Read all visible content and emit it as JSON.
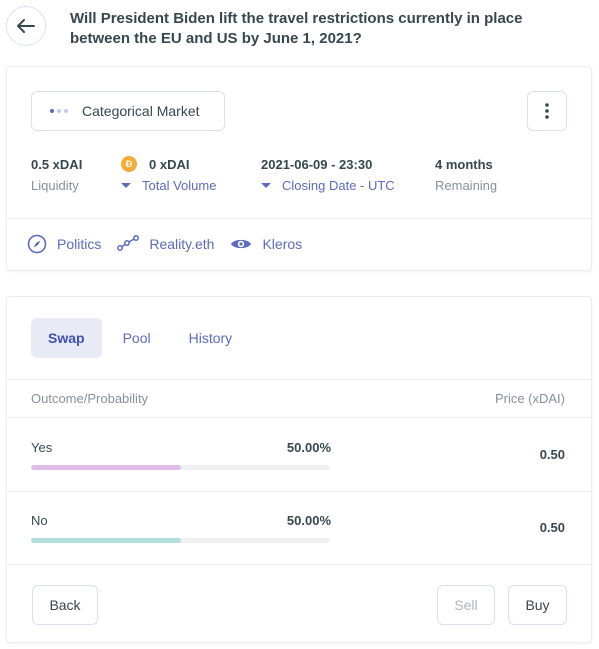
{
  "header": {
    "title": "Will President Biden lift the travel restrictions currently in place between the EU and US by June 1, 2021?"
  },
  "market": {
    "type_label": "Categorical Market",
    "stats": {
      "liquidity_value": "0.5 xDAI",
      "liquidity_label": "Liquidity",
      "volume_value": "0 xDAI",
      "volume_label": "Total Volume",
      "closing_value": "2021-06-09 - 23:30",
      "closing_label": "Closing Date - UTC",
      "remaining_value": "4 months",
      "remaining_label": "Remaining"
    },
    "tags": [
      {
        "label": "Politics",
        "icon": "compass-icon"
      },
      {
        "label": "Reality.eth",
        "icon": "nodes-icon"
      },
      {
        "label": "Kleros",
        "icon": "eye-icon"
      }
    ]
  },
  "trade": {
    "tabs": [
      "Swap",
      "Pool",
      "History"
    ],
    "active_tab": "Swap",
    "columns": {
      "outcome": "Outcome/Probability",
      "price": "Price (xDAI)"
    },
    "outcomes": [
      {
        "name": "Yes",
        "probability": "50.00%",
        "probability_fraction": 0.5,
        "price": "0.50",
        "color": "#e1bee7"
      },
      {
        "name": "No",
        "probability": "50.00%",
        "probability_fraction": 0.5,
        "price": "0.50",
        "color": "#b2dfdb"
      }
    ],
    "buttons": {
      "back": "Back",
      "sell": "Sell",
      "buy": "Buy"
    }
  },
  "colors": {
    "accent": "#5c6bc0",
    "xdai_coin": "#f5ac37"
  }
}
